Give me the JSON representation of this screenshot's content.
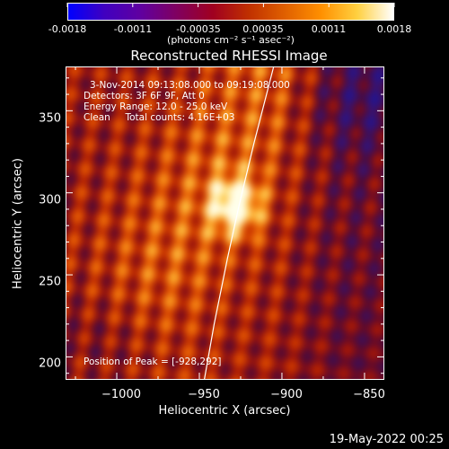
{
  "colorbar": {
    "ticks": [
      "-0.0018",
      "-0.0011",
      "-0.00035",
      "0.00035",
      "0.0011",
      "0.0018"
    ],
    "tick_values": [
      -0.0018,
      -0.0011,
      -0.00035,
      0.00035,
      0.0011,
      0.0018
    ],
    "units": "(photons cm⁻² s⁻¹ asec⁻²)",
    "gradient": [
      "#0000ff",
      "#4000c0",
      "#6000a0",
      "#800060",
      "#a00020",
      "#c03000",
      "#e06000",
      "#ff9000",
      "#ffd040",
      "#ffffff"
    ]
  },
  "annotations": {
    "time": "3-Nov-2014 09:13:08.000 to 09:19:08.000",
    "detectors": "Detectors: 3F 6F 9F, Att 0",
    "energy": "Energy Range: 12.0 - 25.0 keV",
    "clean": "Clean     Total counts: 4.16E+03",
    "peak": "Position of Peak = [-928,292]"
  },
  "footer": {
    "date": "19-May-2022 00:25"
  },
  "chart_data": {
    "type": "heatmap",
    "title": "Reconstructed RHESSI Image",
    "xlabel": "Heliocentric X (arcsec)",
    "ylabel": "Heliocentric Y (arcsec)",
    "xlim": [
      -1031,
      -838
    ],
    "ylim": [
      186,
      377
    ],
    "x_ticks": [
      -1000,
      -950,
      -900,
      -850
    ],
    "x_tick_labels": [
      "−1000",
      "−950",
      "−900",
      "−850"
    ],
    "y_ticks": [
      200,
      250,
      300,
      350
    ],
    "y_tick_labels": [
      "200",
      "250",
      "300",
      "350"
    ],
    "peak_position": [
      -928,
      292
    ],
    "limb_curve": [
      [
        -947,
        186
      ],
      [
        -941,
        220
      ],
      [
        -933,
        260
      ],
      [
        -926,
        292
      ],
      [
        -917,
        330
      ],
      [
        -905,
        377
      ]
    ],
    "zlim": [
      -0.0018,
      0.0018
    ]
  }
}
